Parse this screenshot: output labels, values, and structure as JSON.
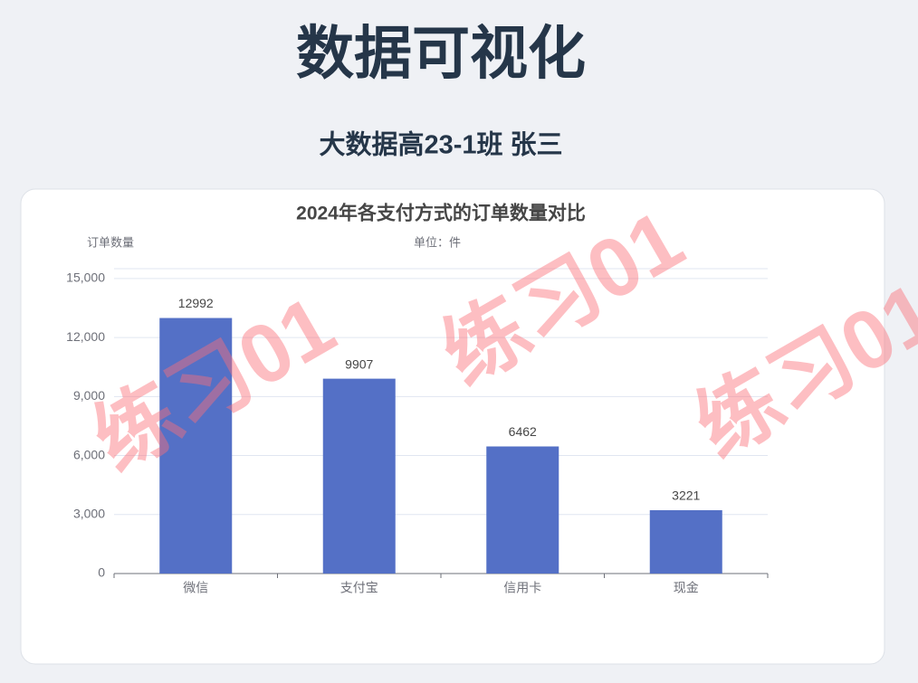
{
  "header": {
    "title": "数据可视化",
    "subtitle": "大数据高23-1班 张三"
  },
  "watermark": "练习01",
  "chart_data": {
    "type": "bar",
    "title": "2024年各支付方式的订单数量对比",
    "y_label": "订单数量",
    "unit_label": "单位：件",
    "categories": [
      "微信",
      "支付宝",
      "信用卡",
      "现金"
    ],
    "values": [
      12992,
      9907,
      6462,
      3221
    ],
    "color": "#5470c6",
    "ylim": [
      0,
      15500
    ],
    "yticks": [
      0,
      {
        "value": 3000,
        "label": "3,000"
      },
      {
        "value": 6000,
        "label": "6,000"
      },
      {
        "value": 9000,
        "label": "9,000"
      },
      {
        "value": 12000,
        "label": "12,000"
      },
      {
        "value": 15000,
        "label": "15,000"
      }
    ],
    "grid": true
  }
}
